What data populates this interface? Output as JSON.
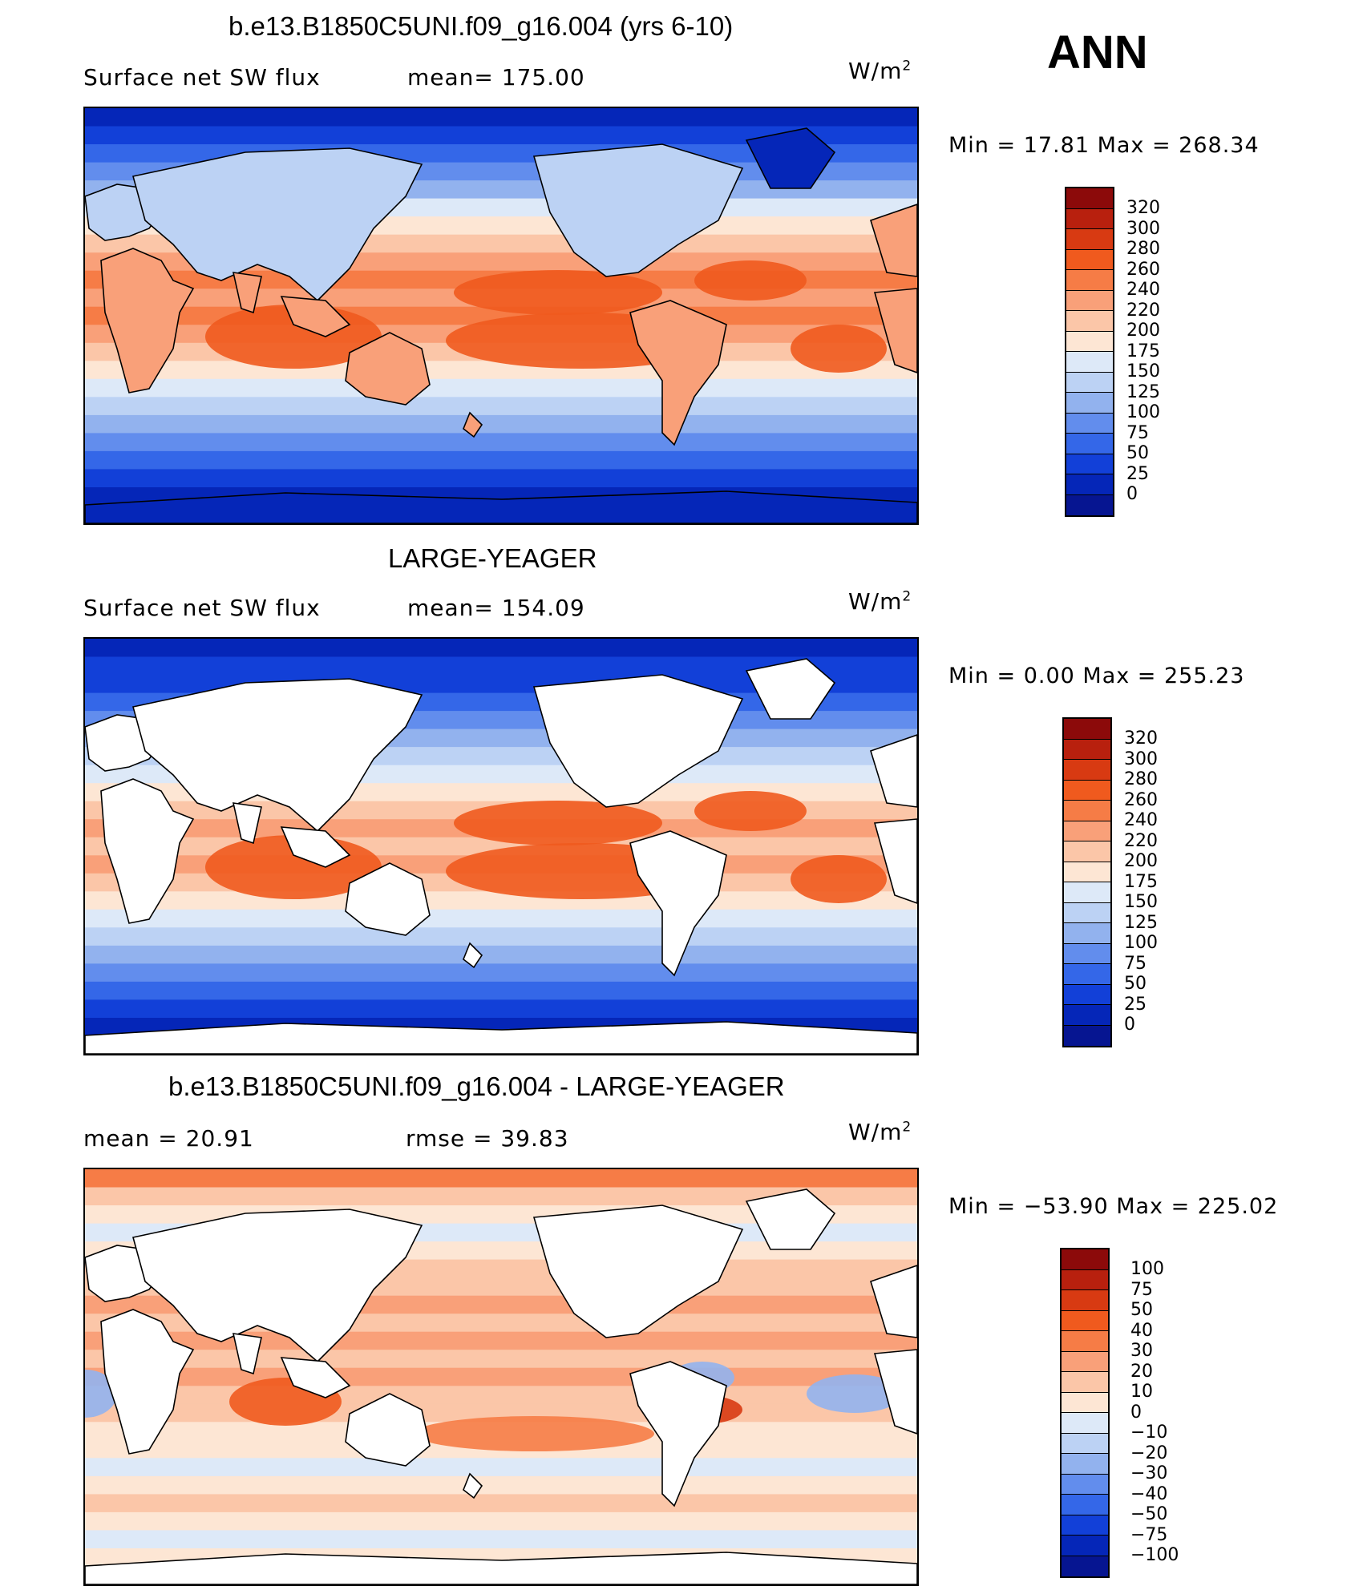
{
  "season": "ANN",
  "units": "W/m",
  "units_sup": "2",
  "panels": [
    {
      "title": "b.e13.B1850C5UNI.f09_g16.004 (yrs 6-10)",
      "left_text": "Surface net SW flux",
      "mid_text": "mean=  175.00",
      "min_max": "Min =   17.81  Max  =  268.34",
      "colorbar_labels": [
        "320",
        "300",
        "280",
        "260",
        "240",
        "220",
        "200",
        "175",
        "150",
        "125",
        "100",
        "75",
        "50",
        "25",
        "0"
      ],
      "colorbar_colors": [
        "#8c0a0a",
        "#b8200e",
        "#d83a12",
        "#f05a1e",
        "#f67c46",
        "#f9a079",
        "#fbc6a8",
        "#fde6d4",
        "#dde9f8",
        "#bcd2f4",
        "#92b2ee",
        "#628ded",
        "#3467e8",
        "#1240d8",
        "#0526b8",
        "#061591"
      ],
      "land_mode": "fill",
      "colors": {
        "ocean_base": "#1f4fe0",
        "land_base": "#f8c2a2"
      }
    },
    {
      "title": "LARGE-YEAGER",
      "left_text": "Surface net SW flux",
      "mid_text": "mean=  154.09",
      "min_max": "Min =    0.00  Max  =  255.23",
      "colorbar_labels": [
        "320",
        "300",
        "280",
        "260",
        "240",
        "220",
        "200",
        "175",
        "150",
        "125",
        "100",
        "75",
        "50",
        "25",
        "0"
      ],
      "colorbar_colors": [
        "#8c0a0a",
        "#b8200e",
        "#d83a12",
        "#f05a1e",
        "#f67c46",
        "#f9a079",
        "#fbc6a8",
        "#fde6d4",
        "#dde9f8",
        "#bcd2f4",
        "#92b2ee",
        "#628ded",
        "#3467e8",
        "#1240d8",
        "#0526b8",
        "#061591"
      ],
      "land_mode": "white",
      "colors": {
        "ocean_base": "#1f4fe0",
        "land_base": "#ffffff"
      }
    },
    {
      "title": "b.e13.B1850C5UNI.f09_g16.004 - LARGE-YEAGER",
      "left_text": "mean  =    20.91",
      "mid_text": "rmse  =    39.83",
      "min_max": "Min  = −53.90  Max  =  225.02",
      "colorbar_labels": [
        "100",
        "75",
        "50",
        "40",
        "30",
        "20",
        "10",
        "0",
        "−10",
        "−20",
        "−30",
        "−40",
        "−50",
        "−75",
        "−100"
      ],
      "colorbar_colors": [
        "#8c0a0a",
        "#b8200e",
        "#d83a12",
        "#f05a1e",
        "#f67c46",
        "#f9a079",
        "#fbc6a8",
        "#fde6d4",
        "#dde9f8",
        "#bcd2f4",
        "#92b2ee",
        "#628ded",
        "#3467e8",
        "#1240d8",
        "#0526b8",
        "#061591"
      ],
      "land_mode": "white",
      "colors": {
        "ocean_base": "#fbc6a8",
        "land_base": "#ffffff"
      }
    }
  ]
}
